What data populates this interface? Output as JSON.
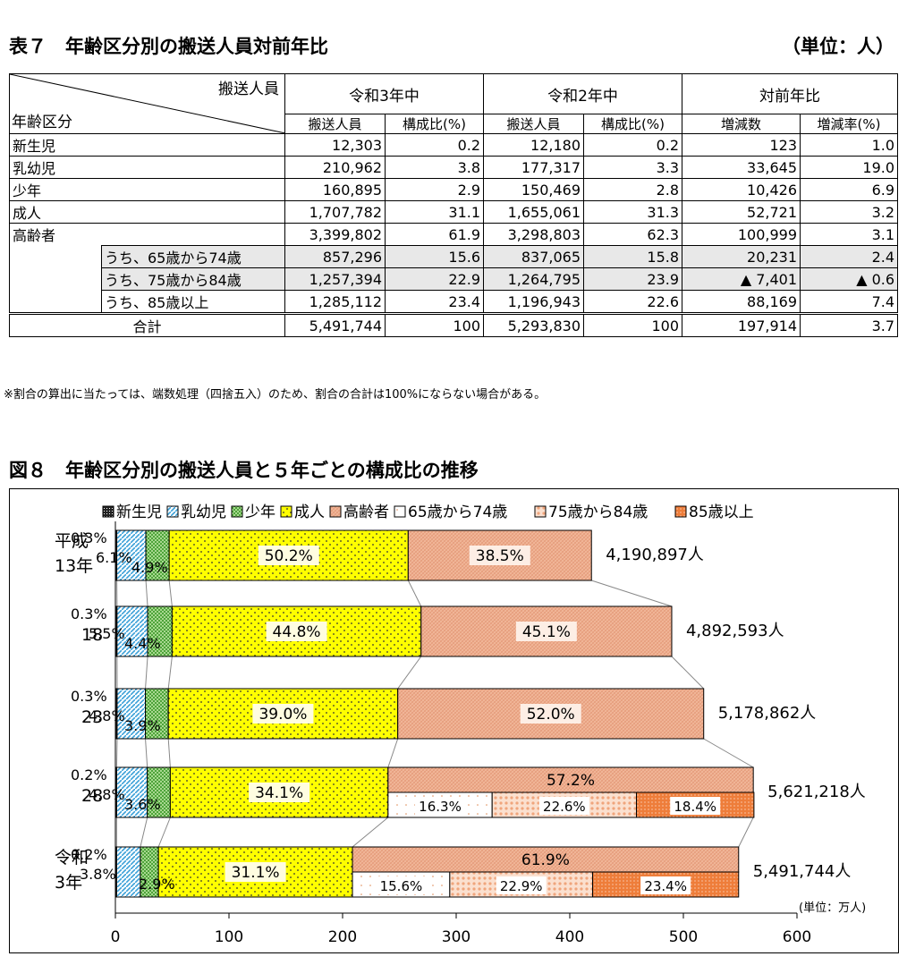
{
  "table7": {
    "title": "表７　年齢区分別の搬送人員対前年比",
    "unit": "（単位：人）",
    "corner_top": "搬送人員",
    "corner_bottom": "年齢区分",
    "groups": [
      "令和3年中",
      "令和2年中",
      "対前年比"
    ],
    "subheaders": [
      "搬送人員",
      "構成比(%)",
      "搬送人員",
      "構成比(%)",
      "増減数",
      "増減率(%)"
    ],
    "rows": [
      {
        "label": "新生児",
        "values": [
          "12,303",
          "0.2",
          "12,180",
          "0.2",
          "123",
          "1.0"
        ]
      },
      {
        "label": "乳幼児",
        "values": [
          "210,962",
          "3.8",
          "177,317",
          "3.3",
          "33,645",
          "19.0"
        ]
      },
      {
        "label": "少年",
        "values": [
          "160,895",
          "2.9",
          "150,469",
          "2.8",
          "10,426",
          "6.9"
        ]
      },
      {
        "label": "成人",
        "values": [
          "1,707,782",
          "31.1",
          "1,655,061",
          "31.3",
          "52,721",
          "3.2"
        ]
      },
      {
        "label": "高齢者",
        "values": [
          "3,399,802",
          "61.9",
          "3,298,803",
          "62.3",
          "100,999",
          "3.1"
        ]
      }
    ],
    "subrows": [
      {
        "label": "うち、65歳から74歳",
        "values": [
          "857,296",
          "15.6",
          "837,065",
          "15.8",
          "20,231",
          "2.4"
        ]
      },
      {
        "label": "うち、75歳から84歳",
        "values": [
          "1,257,394",
          "22.9",
          "1,264,795",
          "23.9",
          "▲ 7,401",
          "▲ 0.6"
        ]
      },
      {
        "label": "うち、85歳以上",
        "values": [
          "1,285,112",
          "23.4",
          "1,196,943",
          "22.6",
          "88,169",
          "7.4"
        ]
      }
    ],
    "total": {
      "label": "合計",
      "values": [
        "5,491,744",
        "100",
        "5,293,830",
        "100",
        "197,914",
        "3.7"
      ]
    },
    "note": "※割合の算出に当たっては、端数処理（四捨五入）のため、割合の合計は100%にならない場合がある。"
  },
  "figure8_title": "図８　年齢区分別の搬送人員と５年ごとの構成比の推移",
  "chart_data": {
    "type": "bar",
    "orientation": "horizontal",
    "stacked": true,
    "title": "図８　年齢区分別の搬送人員と５年ごとの構成比の推移",
    "unit_label": "(単位：万人)",
    "xlim": [
      0,
      600
    ],
    "xticks": [
      "0",
      "100",
      "200",
      "300",
      "400",
      "500",
      "600"
    ],
    "legend_position": "top",
    "legend": [
      "新生児",
      "乳幼児",
      "少年",
      "成人",
      "高齢者",
      "65歳から74歳",
      "75歳から84歳",
      "85歳以上"
    ],
    "categories": [
      {
        "label_lines": [
          "平成",
          "13年"
        ],
        "total": 419.0897,
        "total_label": "4,190,897人"
      },
      {
        "label_lines": [
          "18"
        ],
        "total": 489.2593,
        "total_label": "4,892,593人"
      },
      {
        "label_lines": [
          "23"
        ],
        "total": 517.8862,
        "total_label": "5,178,862人"
      },
      {
        "label_lines": [
          "28"
        ],
        "total": 562.1218,
        "total_label": "5,621,218人"
      },
      {
        "label_lines": [
          "令和",
          "3年"
        ],
        "total": 549.1744,
        "total_label": "5,491,744人"
      }
    ],
    "series": [
      {
        "name": "新生児",
        "pct": [
          0.3,
          0.3,
          0.3,
          0.2,
          0.2
        ],
        "labels": [
          "0.3%",
          "0.3%",
          "0.3%",
          "0.2%",
          "0.2%"
        ],
        "color": "#111111"
      },
      {
        "name": "乳幼児",
        "pct": [
          6.1,
          5.5,
          4.8,
          4.8,
          3.8
        ],
        "labels": [
          "6.1%",
          "5.5%",
          "4.8%",
          "4.8%",
          "3.8%"
        ],
        "color": "#5bb3dd"
      },
      {
        "name": "少年",
        "pct": [
          4.9,
          4.4,
          3.9,
          3.6,
          2.9
        ],
        "labels": [
          "4.9%",
          "4.4%",
          "3.9%",
          "3.6%",
          "2.9%"
        ],
        "color": "#6cbf52"
      },
      {
        "name": "成人",
        "pct": [
          50.2,
          44.8,
          39.0,
          34.1,
          31.1
        ],
        "labels": [
          "50.2%",
          "44.8%",
          "39.0%",
          "34.1%",
          "31.1%"
        ],
        "color": "#ffff00"
      },
      {
        "name": "高齢者",
        "pct": [
          38.5,
          45.1,
          52.0,
          57.2,
          61.9
        ],
        "labels": [
          "38.5%",
          "45.1%",
          "52.0%",
          "57.2%",
          "61.9%"
        ],
        "color": "#f2b89b"
      }
    ],
    "elderly_breakdown": [
      {
        "category_index": 3,
        "values": [
          {
            "name": "65歳から74歳",
            "pct": 16.3,
            "label": "16.3%"
          },
          {
            "name": "75歳から84歳",
            "pct": 22.6,
            "label": "22.6%"
          },
          {
            "name": "85歳以上",
            "pct": 18.4,
            "label": "18.4%"
          }
        ]
      },
      {
        "category_index": 4,
        "values": [
          {
            "name": "65歳から74歳",
            "pct": 15.6,
            "label": "15.6%"
          },
          {
            "name": "75歳から84歳",
            "pct": 22.9,
            "label": "22.9%"
          },
          {
            "name": "85歳以上",
            "pct": 23.4,
            "label": "23.4%"
          }
        ]
      }
    ],
    "breakdown_colors": {
      "65歳から74歳": "#ffffff",
      "75歳から84歳": "#f6c4a6",
      "85歳以上": "#ee7d3a"
    }
  }
}
